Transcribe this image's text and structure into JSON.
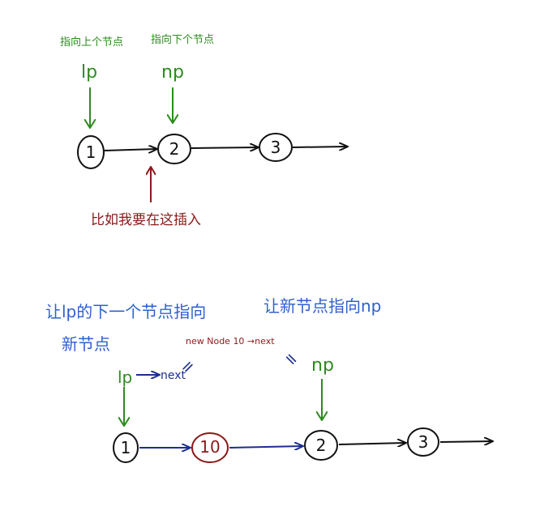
{
  "colors": {
    "ink": "#111111",
    "green": "#2e8b1f",
    "red": "#8b1a1a",
    "blue": "#2f5fd0",
    "navy": "#1c2f8f"
  },
  "top": {
    "lp_caption": "指向上个节点",
    "np_caption": "指向下个节点",
    "lp": "lp",
    "np": "np",
    "nodes": [
      "1",
      "2",
      "3"
    ],
    "insert_note": "比如我要在这插入"
  },
  "bottom": {
    "note_left_line1": "让lp的下一个节点指向",
    "note_left_line2": "新节点",
    "note_right": "让新节点指向np",
    "lp": "lp",
    "lp_next": "next",
    "np": "np",
    "new_node_text": "new Node 10 →next",
    "eq1": "=",
    "eq2": "=",
    "nodes": [
      "1",
      "10",
      "2",
      "3"
    ]
  }
}
